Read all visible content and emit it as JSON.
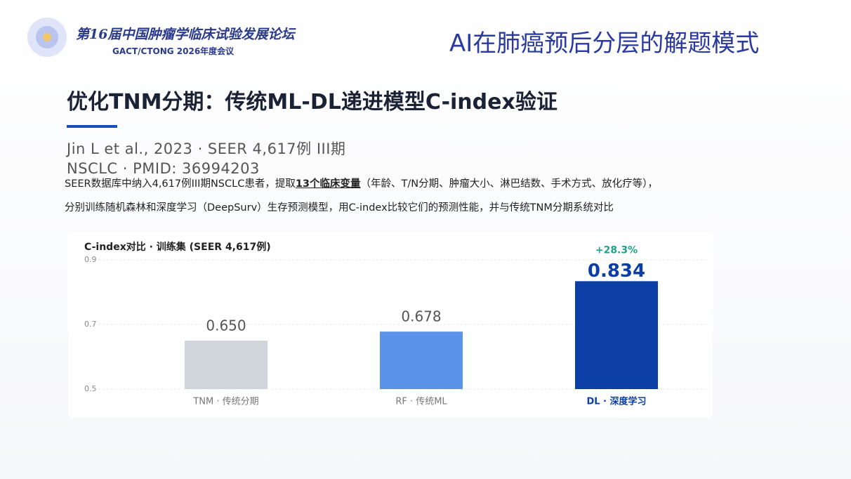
{
  "header": {
    "forum": "第16届中国肿瘤学临床试验发展论坛",
    "meeting": "GACT/CTONG 2026年度会议",
    "slide_title": "AI在肺癌预后分层的解题模式"
  },
  "heading": "优化TNM分期：传统ML-DL递进模型C-index验证",
  "citation": "Jin L et al., 2023 · SEER 4,617例 III期 NSCLC · PMID: 36994203",
  "description": {
    "line1_start": "SEER数据库中纳入4,617例III期NSCLC患者，提取",
    "line1_bold": "13个临床变量",
    "line1_end": "（年龄、T/N分期、肿瘤大小、淋巴结数、手术方式、放化疗等），",
    "line2": "分别训练随机森林和深度学习（DeepSurv）生存预测模型，用C-index比较它们的预测性能，并与传统TNM分期系统对比"
  },
  "chart_data": {
    "type": "bar",
    "title": "C-index对比 · 训练集 (SEER 4,617例)",
    "categories": [
      "TNM · 传统分期",
      "RF · 传统ML",
      "DL · 深度学习"
    ],
    "values": [
      0.65,
      0.678,
      0.834
    ],
    "value_labels": [
      "0.650",
      "0.678",
      "0.834"
    ],
    "colors": [
      "#d0d5dc",
      "#5b93e8",
      "#0b3fa6"
    ],
    "ylim": [
      0.5,
      0.9
    ],
    "yticks": [
      0.5,
      0.7,
      0.9
    ],
    "grid": true,
    "annotation": "+28.3%"
  }
}
